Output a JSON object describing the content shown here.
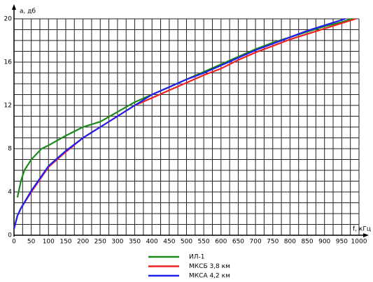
{
  "chart_data": {
    "type": "line",
    "y_label": "а, дб",
    "x_label": "f, кГц",
    "xlim": [
      0,
      1000
    ],
    "ylim": [
      0,
      20
    ],
    "xticks": [
      0,
      50,
      100,
      150,
      200,
      250,
      300,
      350,
      400,
      450,
      500,
      550,
      600,
      650,
      700,
      750,
      800,
      850,
      900,
      950,
      1000
    ],
    "yticks": [
      0,
      4,
      8,
      12,
      16,
      20
    ],
    "xgrid": [
      0,
      25,
      50,
      75,
      100,
      125,
      150,
      175,
      200,
      225,
      250,
      275,
      300,
      325,
      350,
      375,
      400,
      425,
      450,
      475,
      500,
      525,
      550,
      575,
      600,
      625,
      650,
      675,
      700,
      725,
      750,
      775,
      800,
      825,
      850,
      875,
      900,
      925,
      950,
      975,
      1000
    ],
    "ygrid": [
      0,
      1,
      2,
      3,
      4,
      5,
      6,
      7,
      8,
      9,
      10,
      11,
      12,
      13,
      14,
      15,
      16,
      17,
      18,
      19,
      20
    ],
    "grid": true,
    "series": [
      {
        "name": "ИЛ-1",
        "color": "#1a8a1a",
        "x": [
          10,
          20,
          30,
          50,
          80,
          100,
          150,
          200,
          250,
          300,
          350,
          400,
          450,
          500,
          550,
          600,
          650,
          700,
          750,
          800,
          850,
          900,
          950,
          980
        ],
        "values": [
          3.5,
          5,
          6,
          7,
          8,
          8.3,
          9.2,
          10,
          10.5,
          11.4,
          12.3,
          13,
          13.7,
          14.4,
          15.1,
          15.8,
          16.5,
          17.2,
          17.8,
          18.3,
          18.8,
          19.3,
          19.7,
          20
        ]
      },
      {
        "name": "МКСБ 3,8 км",
        "color": "#ee2020",
        "x": [
          0,
          10,
          20,
          50,
          100,
          150,
          200,
          250,
          300,
          350,
          400,
          450,
          500,
          550,
          600,
          650,
          700,
          750,
          800,
          850,
          900,
          950,
          990
        ],
        "values": [
          0.6,
          1.8,
          2.5,
          4,
          6.3,
          7.7,
          9,
          10,
          11,
          12,
          12.7,
          13.4,
          14.1,
          14.8,
          15.4,
          16.2,
          16.9,
          17.5,
          18.1,
          18.6,
          19.1,
          19.6,
          20
        ]
      },
      {
        "name": "МКСА 4,2 км",
        "color": "#2020ee",
        "x": [
          0,
          10,
          20,
          50,
          100,
          150,
          200,
          250,
          300,
          350,
          400,
          450,
          500,
          550,
          600,
          650,
          700,
          750,
          800,
          850,
          900,
          950,
          960
        ],
        "values": [
          0.6,
          1.8,
          2.5,
          4.1,
          6.4,
          7.8,
          9,
          10,
          11,
          12,
          13,
          13.7,
          14.4,
          15,
          15.7,
          16.4,
          17.1,
          17.7,
          18.3,
          18.9,
          19.4,
          19.9,
          20
        ]
      }
    ]
  }
}
